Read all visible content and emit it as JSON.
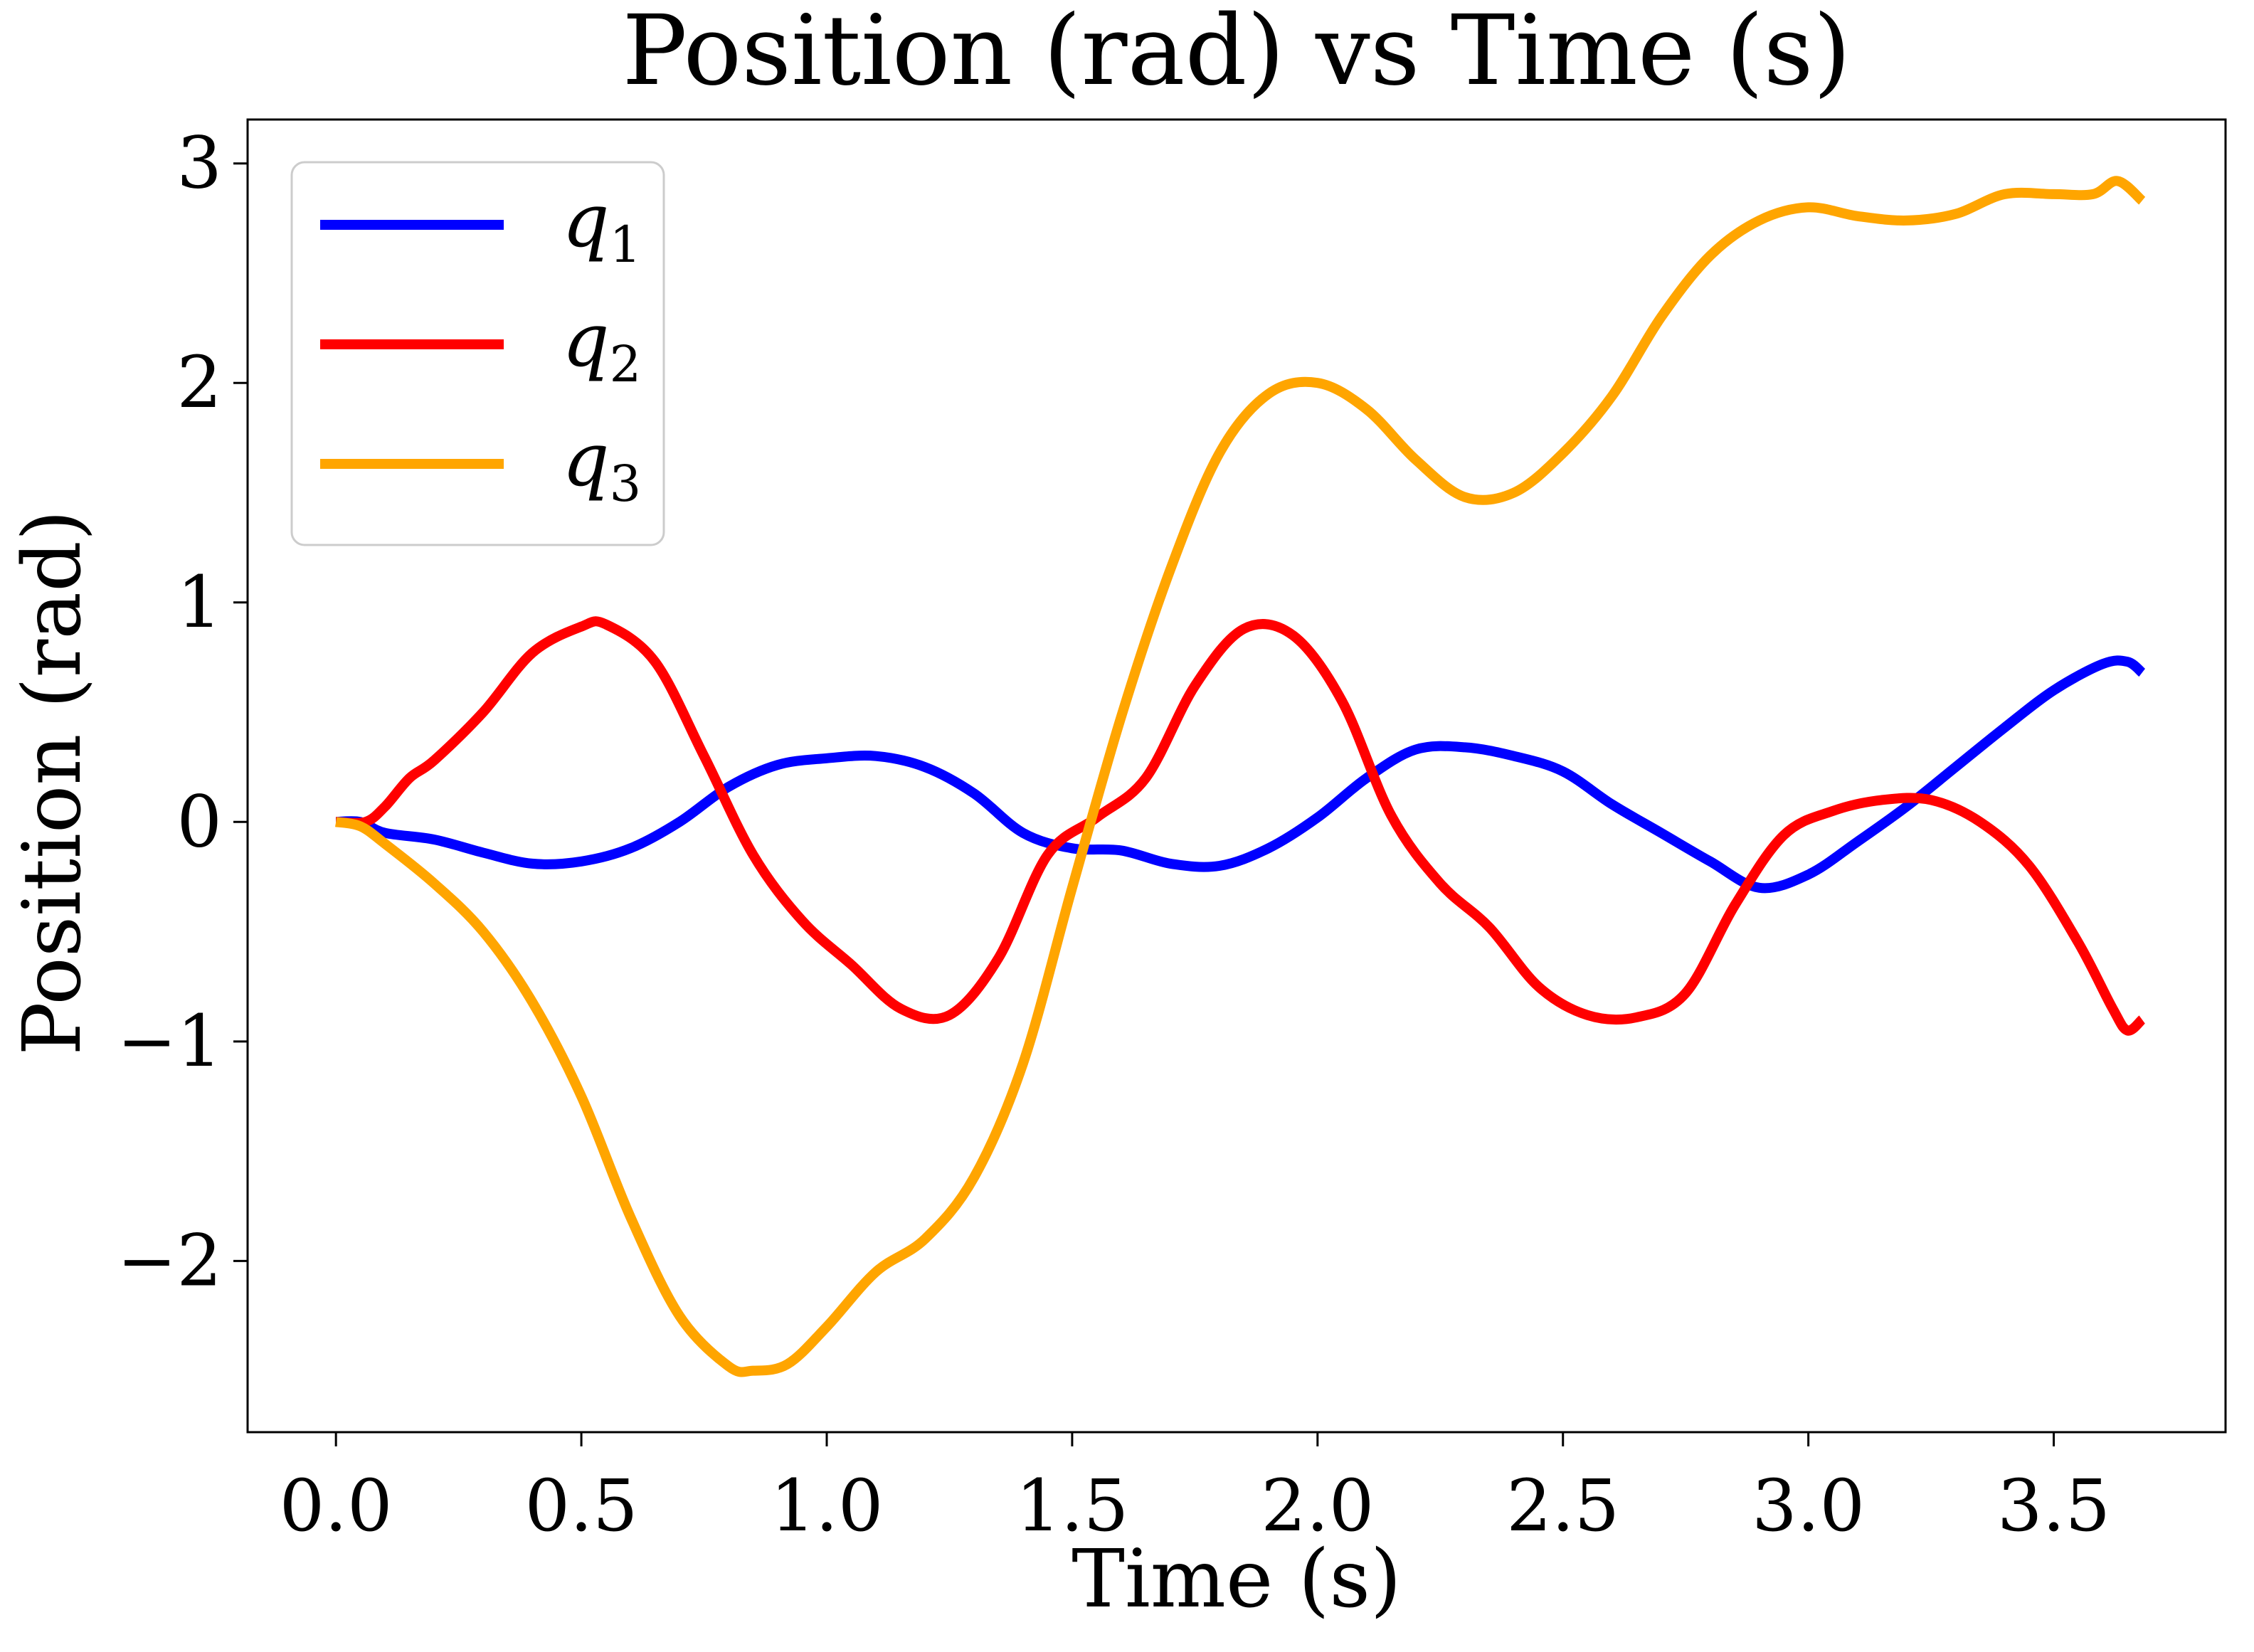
{
  "chart_data": {
    "type": "line",
    "title": "Position (rad) vs Time (s)",
    "xlabel": "Time (s)",
    "ylabel": "Position (rad)",
    "xlim": [
      -0.18,
      3.85
    ],
    "ylim": [
      -2.78,
      3.2
    ],
    "xticks": [
      0.0,
      0.5,
      1.0,
      1.5,
      2.0,
      2.5,
      3.0,
      3.5
    ],
    "xtick_labels": [
      "0.0",
      "0.5",
      "1.0",
      "1.5",
      "2.0",
      "2.5",
      "3.0",
      "3.5"
    ],
    "yticks": [
      -2,
      -1,
      0,
      1,
      2,
      3
    ],
    "ytick_labels": [
      "−2",
      "−1",
      "0",
      "1",
      "2",
      "3"
    ],
    "grid": false,
    "legend_position": "top-left",
    "series": [
      {
        "name": "q",
        "subscript": "1",
        "color": "#0000ff",
        "points": [
          [
            0.0,
            0.0
          ],
          [
            0.05,
            0.0
          ],
          [
            0.1,
            -0.05
          ],
          [
            0.2,
            -0.08
          ],
          [
            0.3,
            -0.14
          ],
          [
            0.4,
            -0.19
          ],
          [
            0.5,
            -0.18
          ],
          [
            0.6,
            -0.12
          ],
          [
            0.7,
            0.0
          ],
          [
            0.8,
            0.16
          ],
          [
            0.9,
            0.26
          ],
          [
            1.0,
            0.29
          ],
          [
            1.1,
            0.3
          ],
          [
            1.2,
            0.25
          ],
          [
            1.3,
            0.13
          ],
          [
            1.4,
            -0.05
          ],
          [
            1.5,
            -0.12
          ],
          [
            1.6,
            -0.13
          ],
          [
            1.7,
            -0.19
          ],
          [
            1.8,
            -0.2
          ],
          [
            1.9,
            -0.12
          ],
          [
            2.0,
            0.02
          ],
          [
            2.1,
            0.2
          ],
          [
            2.2,
            0.33
          ],
          [
            2.3,
            0.34
          ],
          [
            2.4,
            0.3
          ],
          [
            2.5,
            0.23
          ],
          [
            2.6,
            0.08
          ],
          [
            2.7,
            -0.05
          ],
          [
            2.8,
            -0.18
          ],
          [
            2.9,
            -0.3
          ],
          [
            3.0,
            -0.24
          ],
          [
            3.1,
            -0.09
          ],
          [
            3.2,
            0.07
          ],
          [
            3.3,
            0.25
          ],
          [
            3.4,
            0.43
          ],
          [
            3.5,
            0.6
          ],
          [
            3.6,
            0.72
          ],
          [
            3.65,
            0.73
          ],
          [
            3.68,
            0.68
          ]
        ]
      },
      {
        "name": "q",
        "subscript": "2",
        "color": "#ff0000",
        "points": [
          [
            0.0,
            0.0
          ],
          [
            0.06,
            0.0
          ],
          [
            0.1,
            0.07
          ],
          [
            0.15,
            0.2
          ],
          [
            0.2,
            0.28
          ],
          [
            0.3,
            0.5
          ],
          [
            0.4,
            0.77
          ],
          [
            0.5,
            0.89
          ],
          [
            0.55,
            0.9
          ],
          [
            0.65,
            0.73
          ],
          [
            0.75,
            0.3
          ],
          [
            0.85,
            -0.15
          ],
          [
            0.95,
            -0.45
          ],
          [
            1.05,
            -0.65
          ],
          [
            1.15,
            -0.85
          ],
          [
            1.25,
            -0.88
          ],
          [
            1.35,
            -0.62
          ],
          [
            1.45,
            -0.15
          ],
          [
            1.55,
            0.02
          ],
          [
            1.65,
            0.2
          ],
          [
            1.75,
            0.62
          ],
          [
            1.85,
            0.88
          ],
          [
            1.95,
            0.85
          ],
          [
            2.05,
            0.55
          ],
          [
            2.15,
            0.03
          ],
          [
            2.25,
            -0.28
          ],
          [
            2.35,
            -0.48
          ],
          [
            2.45,
            -0.75
          ],
          [
            2.55,
            -0.88
          ],
          [
            2.65,
            -0.89
          ],
          [
            2.75,
            -0.78
          ],
          [
            2.85,
            -0.38
          ],
          [
            2.95,
            -0.06
          ],
          [
            3.05,
            0.05
          ],
          [
            3.15,
            0.1
          ],
          [
            3.25,
            0.1
          ],
          [
            3.35,
            0.0
          ],
          [
            3.45,
            -0.2
          ],
          [
            3.55,
            -0.55
          ],
          [
            3.62,
            -0.85
          ],
          [
            3.65,
            -0.95
          ],
          [
            3.68,
            -0.9
          ]
        ]
      },
      {
        "name": "q",
        "subscript": "3",
        "color": "#ffa500",
        "points": [
          [
            0.0,
            0.0
          ],
          [
            0.05,
            -0.02
          ],
          [
            0.1,
            -0.1
          ],
          [
            0.2,
            -0.28
          ],
          [
            0.3,
            -0.5
          ],
          [
            0.4,
            -0.82
          ],
          [
            0.5,
            -1.25
          ],
          [
            0.6,
            -1.8
          ],
          [
            0.7,
            -2.25
          ],
          [
            0.8,
            -2.48
          ],
          [
            0.85,
            -2.5
          ],
          [
            0.92,
            -2.47
          ],
          [
            1.0,
            -2.3
          ],
          [
            1.1,
            -2.05
          ],
          [
            1.2,
            -1.9
          ],
          [
            1.3,
            -1.62
          ],
          [
            1.4,
            -1.1
          ],
          [
            1.5,
            -0.3
          ],
          [
            1.6,
            0.48
          ],
          [
            1.7,
            1.15
          ],
          [
            1.8,
            1.68
          ],
          [
            1.9,
            1.95
          ],
          [
            2.0,
            2.0
          ],
          [
            2.1,
            1.88
          ],
          [
            2.2,
            1.65
          ],
          [
            2.3,
            1.48
          ],
          [
            2.4,
            1.5
          ],
          [
            2.5,
            1.68
          ],
          [
            2.6,
            1.94
          ],
          [
            2.7,
            2.3
          ],
          [
            2.8,
            2.58
          ],
          [
            2.9,
            2.74
          ],
          [
            3.0,
            2.8
          ],
          [
            3.1,
            2.76
          ],
          [
            3.2,
            2.74
          ],
          [
            3.3,
            2.77
          ],
          [
            3.4,
            2.86
          ],
          [
            3.5,
            2.86
          ],
          [
            3.58,
            2.86
          ],
          [
            3.63,
            2.92
          ],
          [
            3.68,
            2.83
          ]
        ]
      }
    ]
  }
}
